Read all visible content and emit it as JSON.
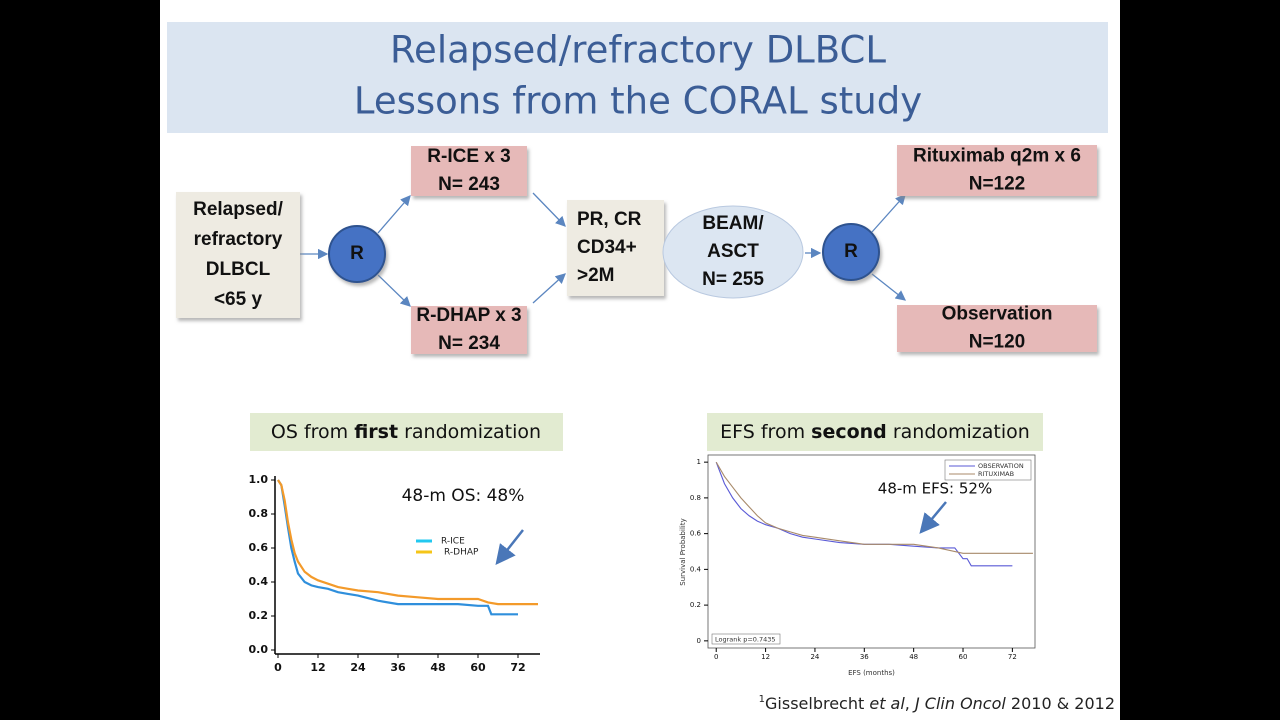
{
  "title": {
    "lines": [
      "Relapsed/refractory DLBCL",
      "Lessons from the CORAL study"
    ]
  },
  "nodes": [
    {
      "lines": [
        "Relapsed/",
        "refractory",
        "DLBCL",
        "<65 y"
      ]
    },
    {
      "lines": [
        "R"
      ]
    },
    {
      "lines": [
        "R-ICE x 3",
        "N= 243"
      ]
    },
    {
      "lines": [
        "R-DHAP x 3",
        "N= 234"
      ]
    },
    {
      "lines": [
        "PR, CR",
        "CD34+",
        ">2M"
      ]
    },
    {
      "lines": [
        "BEAM/",
        "ASCT",
        "N= 255"
      ]
    },
    {
      "lines": [
        "R"
      ]
    },
    {
      "lines": [
        "Rituximab q2m x 6",
        "N=122"
      ]
    },
    {
      "lines": [
        "Observation",
        "N=120"
      ]
    }
  ],
  "panels": [
    {
      "heading": {
        "before": "OS from ",
        "bold": "first",
        "after": " randomization"
      }
    },
    {
      "heading": {
        "before": "EFS from ",
        "bold": "second",
        "after": " randomization"
      }
    }
  ],
  "charts": [
    {
      "type": "line",
      "annotation": "48-m OS: 48%",
      "xlim": [
        0,
        78
      ],
      "ylim": [
        0,
        1
      ],
      "xticks": [
        0,
        12,
        24,
        36,
        48,
        60,
        72
      ],
      "yticks": [
        {
          "value": 0,
          "label": "0.0"
        },
        {
          "value": 0.2,
          "label": "0.2"
        },
        {
          "value": 0.4,
          "label": "0.4"
        },
        {
          "value": 0.6,
          "label": "0.6"
        },
        {
          "value": 0.8,
          "label": "0.8"
        },
        {
          "value": 1,
          "label": "1.0"
        }
      ],
      "series": [
        {
          "name": "R-ICE",
          "color": "#2f8fdc",
          "legend_color": "#22c8f0",
          "x": [
            0,
            1,
            2,
            3,
            4,
            5,
            6,
            8,
            10,
            12,
            15,
            18,
            21,
            24,
            30,
            36,
            42,
            48,
            54,
            60,
            63,
            64,
            72
          ],
          "values": [
            1,
            0.97,
            0.85,
            0.72,
            0.6,
            0.52,
            0.45,
            0.4,
            0.38,
            0.37,
            0.36,
            0.34,
            0.33,
            0.32,
            0.29,
            0.27,
            0.27,
            0.27,
            0.27,
            0.26,
            0.26,
            0.21,
            0.21
          ]
        },
        {
          "name": "R-DHAP",
          "color": "#f39a2a",
          "legend_color": "#f5c518",
          "x": [
            0,
            1,
            2,
            3,
            4,
            5,
            6,
            8,
            10,
            12,
            15,
            18,
            21,
            24,
            30,
            36,
            42,
            48,
            54,
            60,
            63,
            66,
            78
          ],
          "values": [
            1,
            0.97,
            0.88,
            0.75,
            0.65,
            0.57,
            0.52,
            0.46,
            0.43,
            0.41,
            0.39,
            0.37,
            0.36,
            0.35,
            0.34,
            0.32,
            0.31,
            0.3,
            0.3,
            0.3,
            0.28,
            0.27,
            0.27
          ]
        }
      ]
    },
    {
      "type": "line",
      "annotation": "48-m EFS: 52%",
      "note": "Logrank p=0.7435",
      "x_label": "EFS (months)",
      "y_label": "Survival Probability",
      "xlim": [
        -2,
        77.5
      ],
      "ylim": [
        -0.04,
        1.04
      ],
      "xticks": [
        0,
        12,
        24,
        36,
        48,
        60,
        72
      ],
      "yticks": [
        0,
        0.2,
        0.4,
        0.6,
        0.8,
        1
      ],
      "series": [
        {
          "name": "OBSERVATION",
          "color": "#5a5ad6",
          "x": [
            0,
            2,
            4,
            6,
            8,
            10,
            12,
            15,
            18,
            21,
            24,
            30,
            36,
            42,
            48,
            54,
            58,
            60,
            61,
            62,
            72
          ],
          "values": [
            1,
            0.88,
            0.8,
            0.74,
            0.7,
            0.67,
            0.65,
            0.63,
            0.6,
            0.58,
            0.57,
            0.55,
            0.54,
            0.54,
            0.53,
            0.52,
            0.52,
            0.46,
            0.46,
            0.42,
            0.42
          ]
        },
        {
          "name": "RITUXIMAB",
          "color": "#a88a6a",
          "x": [
            0,
            2,
            4,
            6,
            8,
            10,
            12,
            15,
            18,
            21,
            24,
            30,
            36,
            42,
            48,
            54,
            60,
            66,
            72,
            77
          ],
          "values": [
            1,
            0.92,
            0.86,
            0.8,
            0.75,
            0.7,
            0.66,
            0.63,
            0.61,
            0.59,
            0.58,
            0.56,
            0.54,
            0.54,
            0.54,
            0.52,
            0.49,
            0.49,
            0.49,
            0.49
          ]
        }
      ]
    }
  ],
  "footnote": {
    "sup": "1",
    "author": "Gisselbrecht ",
    "etal": "et al",
    "sep": ", ",
    "journal": "J Clin Oncol",
    "years": " 2010 & 2012"
  }
}
